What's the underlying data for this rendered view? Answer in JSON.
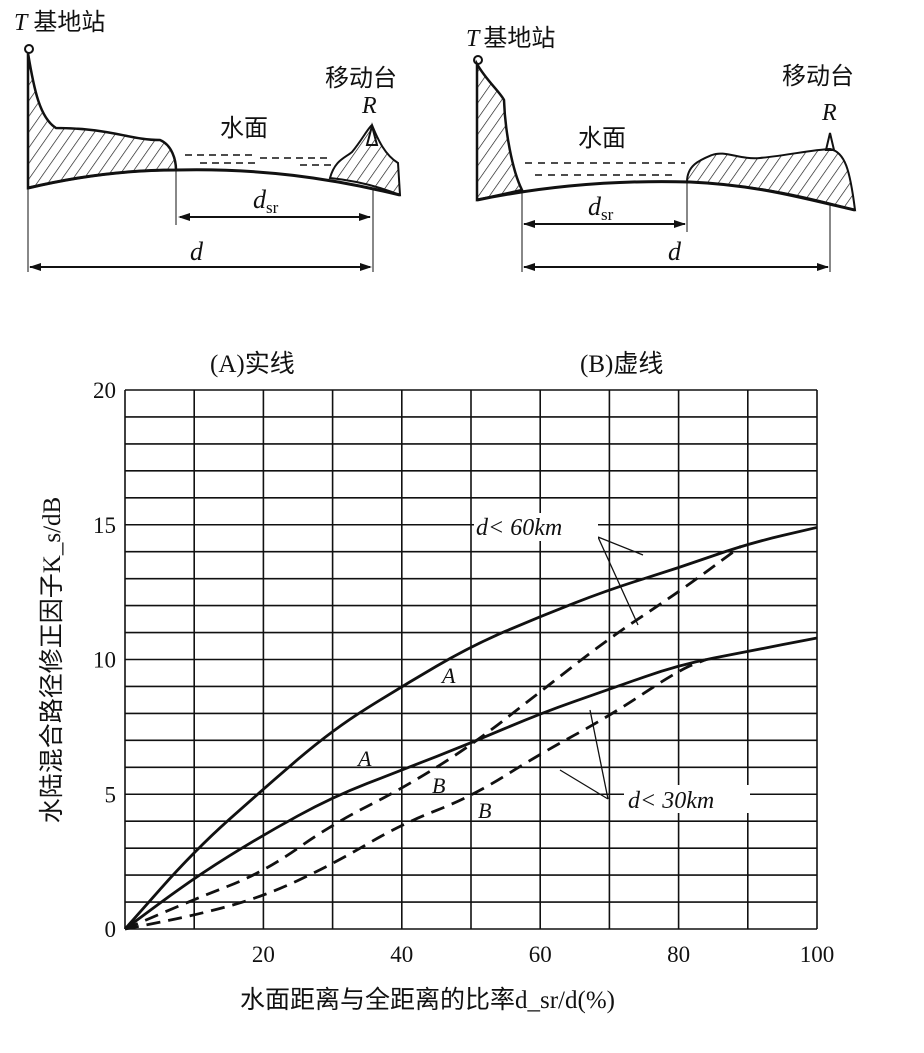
{
  "diagrams": [
    {
      "station": "T",
      "station_label": "基地站",
      "water": "水面",
      "mobile": "移动台",
      "mobile_mark": "R",
      "dsr": "d",
      "dsr_sub": "sr",
      "d": "d"
    },
    {
      "station": "T",
      "station_label": "基地站",
      "water": "水面",
      "mobile": "移动台",
      "mobile_mark": "R",
      "dsr": "d",
      "dsr_sub": "sr",
      "d": "d"
    }
  ],
  "chart_data": {
    "type": "line",
    "title_a": "(A)实线",
    "title_b": "(B)虚线",
    "ylabel": "水陆混合路径修正因子K_s/dB",
    "xlabel": "水面距离与全距离的比率d_sr/d(%)",
    "xlim": [
      0,
      100
    ],
    "ylim": [
      0,
      20
    ],
    "xticks": [
      "20",
      "40",
      "60",
      "80",
      "100"
    ],
    "yticks": [
      "0",
      "5",
      "10",
      "15",
      "20"
    ],
    "grid": true,
    "series": [
      {
        "name": "A d<60km",
        "style": "solid",
        "x": [
          0,
          10,
          20,
          30,
          40,
          50,
          60,
          70,
          80,
          90,
          100
        ],
        "y": [
          0,
          2.9,
          5.2,
          7.4,
          9.0,
          10.5,
          11.6,
          12.6,
          13.4,
          14.3,
          14.9
        ]
      },
      {
        "name": "A d<30km",
        "style": "solid",
        "x": [
          0,
          10,
          20,
          30,
          40,
          50,
          60,
          70,
          80,
          90,
          100
        ],
        "y": [
          0,
          1.9,
          3.5,
          4.9,
          5.9,
          6.9,
          8.0,
          8.9,
          9.8,
          10.3,
          10.8
        ]
      },
      {
        "name": "B d<60km",
        "style": "dashed",
        "x": [
          0,
          10,
          20,
          30,
          40,
          50,
          60,
          70,
          80,
          89
        ],
        "y": [
          0,
          1.1,
          2.1,
          3.9,
          5.2,
          6.8,
          8.8,
          10.8,
          12.5,
          14.2
        ]
      },
      {
        "name": "B d<30km",
        "style": "dashed",
        "x": [
          0,
          10,
          20,
          30,
          40,
          50,
          60,
          70,
          80,
          84
        ],
        "y": [
          0,
          0.5,
          1.2,
          2.4,
          3.9,
          4.9,
          6.5,
          7.9,
          9.6,
          10.0
        ]
      }
    ],
    "annotations": {
      "a1": "A",
      "a2": "A",
      "b1": "B",
      "b2": "B",
      "d60": "d< 60km",
      "d30": "d< 30km"
    }
  }
}
